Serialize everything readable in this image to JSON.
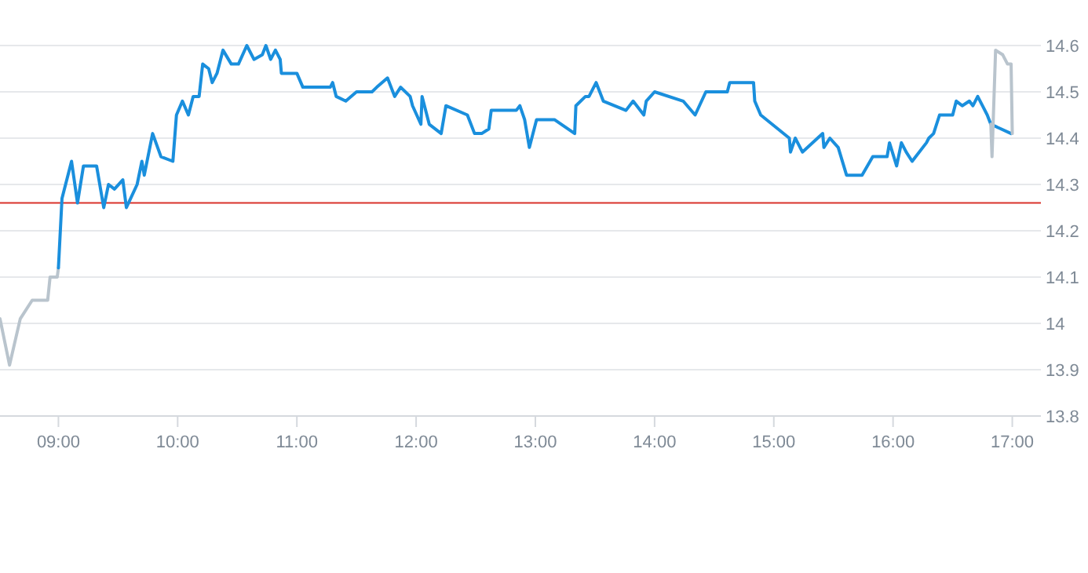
{
  "chart_data": {
    "type": "line",
    "xlim": [
      8.51,
      17.24
    ],
    "ylim": [
      13.8,
      14.6
    ],
    "xticks": [
      {
        "value": 9,
        "label": "09:00"
      },
      {
        "value": 10,
        "label": "10:00"
      },
      {
        "value": 11,
        "label": "11:00"
      },
      {
        "value": 12,
        "label": "12:00"
      },
      {
        "value": 13,
        "label": "13:00"
      },
      {
        "value": 14,
        "label": "14:00"
      },
      {
        "value": 15,
        "label": "15:00"
      },
      {
        "value": 16,
        "label": "16:00"
      },
      {
        "value": 17,
        "label": "17:00"
      }
    ],
    "yticks": [
      13.8,
      13.9,
      14,
      14.1,
      14.2,
      14.3,
      14.4,
      14.5,
      14.6
    ],
    "grid": "y",
    "marker": "none",
    "line_style": "solid",
    "ref_lines": [
      {
        "axis": "y",
        "value": 14.26,
        "color": "#d9322b"
      }
    ],
    "series": [
      {
        "color": "#b9c4cd",
        "x": [
          8.51,
          8.59,
          8.68,
          8.78,
          8.91,
          8.93,
          8.99,
          9.0
        ],
        "values": [
          14.01,
          13.91,
          14.01,
          14.05,
          14.05,
          14.1,
          14.1,
          14.12
        ]
      },
      {
        "color": "#1a8fdd",
        "x": [
          9.0,
          9.03,
          9.11,
          9.16,
          9.21,
          9.32,
          9.38,
          9.42,
          9.47,
          9.54,
          9.57,
          9.66,
          9.7,
          9.72,
          9.79,
          9.86,
          9.96,
          9.99,
          10.04,
          10.09,
          10.13,
          10.18,
          10.21,
          10.26,
          10.29,
          10.33,
          10.38,
          10.45,
          10.51,
          10.58,
          10.64,
          10.71,
          10.74,
          10.78,
          10.82,
          10.86,
          10.87,
          11.0,
          11.05,
          11.28,
          11.3,
          11.33,
          11.41,
          11.5,
          11.63,
          11.67,
          11.76,
          11.82,
          11.87,
          11.95,
          11.97,
          12.04,
          12.05,
          12.11,
          12.21,
          12.25,
          12.43,
          12.49,
          12.55,
          12.61,
          12.63,
          12.84,
          12.87,
          12.91,
          12.95,
          13.01,
          13.16,
          13.33,
          13.34,
          13.42,
          13.45,
          13.51,
          13.57,
          13.76,
          13.82,
          13.91,
          13.93,
          14.0,
          14.24,
          14.34,
          14.43,
          14.61,
          14.63,
          14.83,
          14.84,
          14.89,
          15.13,
          15.14,
          15.18,
          15.24,
          15.41,
          15.42,
          15.47,
          15.54,
          15.61,
          15.74,
          15.83,
          15.95,
          15.97,
          16.03,
          16.07,
          16.11,
          16.16,
          16.28,
          16.3,
          16.34,
          16.39,
          16.5,
          16.53,
          16.58,
          16.64,
          16.67,
          16.71,
          16.75,
          16.79,
          16.82,
          16.99
        ],
        "values": [
          14.12,
          14.27,
          14.35,
          14.26,
          14.34,
          14.34,
          14.25,
          14.3,
          14.29,
          14.31,
          14.25,
          14.3,
          14.35,
          14.32,
          14.41,
          14.36,
          14.35,
          14.45,
          14.48,
          14.45,
          14.49,
          14.49,
          14.56,
          14.55,
          14.52,
          14.54,
          14.59,
          14.56,
          14.56,
          14.6,
          14.57,
          14.58,
          14.6,
          14.57,
          14.59,
          14.57,
          14.54,
          14.54,
          14.51,
          14.51,
          14.52,
          14.49,
          14.48,
          14.5,
          14.5,
          14.51,
          14.53,
          14.49,
          14.51,
          14.49,
          14.47,
          14.43,
          14.49,
          14.43,
          14.41,
          14.47,
          14.45,
          14.41,
          14.41,
          14.42,
          14.46,
          14.46,
          14.47,
          14.44,
          14.38,
          14.44,
          14.44,
          14.41,
          14.47,
          14.49,
          14.49,
          14.52,
          14.48,
          14.46,
          14.48,
          14.45,
          14.48,
          14.5,
          14.48,
          14.45,
          14.5,
          14.5,
          14.52,
          14.52,
          14.48,
          14.45,
          14.4,
          14.37,
          14.4,
          14.37,
          14.41,
          14.38,
          14.4,
          14.38,
          14.32,
          14.32,
          14.36,
          14.36,
          14.39,
          14.34,
          14.39,
          14.37,
          14.35,
          14.39,
          14.4,
          14.41,
          14.45,
          14.45,
          14.48,
          14.47,
          14.48,
          14.47,
          14.49,
          14.47,
          14.45,
          14.43,
          14.41
        ]
      },
      {
        "color": "#b9c4cd",
        "x": [
          16.82,
          16.83,
          16.86,
          16.92,
          16.96,
          16.99,
          17.0
        ],
        "values": [
          14.43,
          14.36,
          14.59,
          14.58,
          14.56,
          14.56,
          14.41
        ]
      }
    ]
  }
}
